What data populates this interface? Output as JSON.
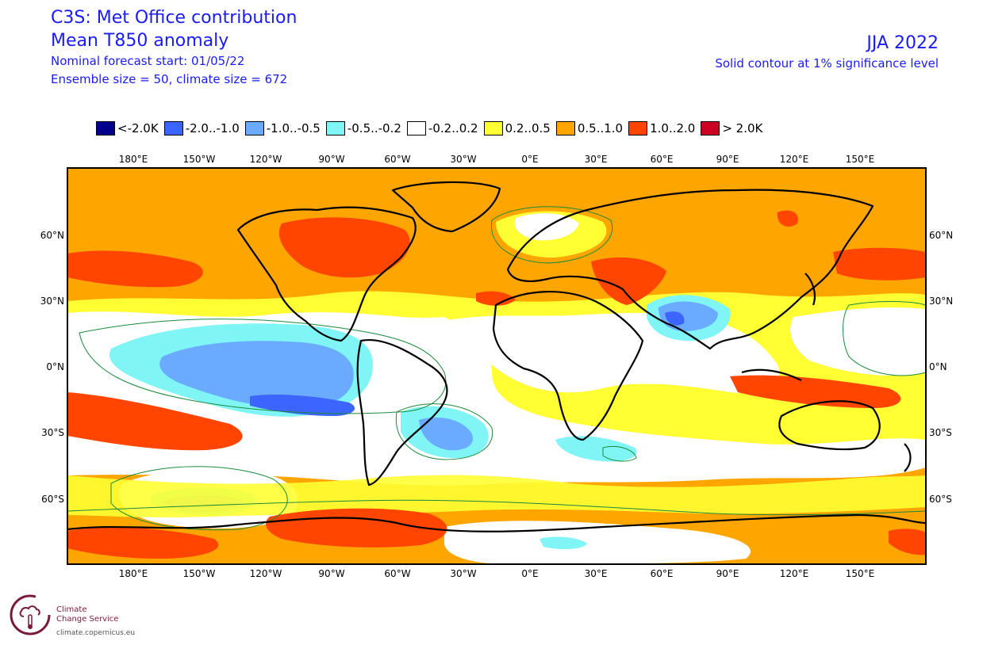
{
  "header": {
    "title_line1": "C3S: Met Office contribution",
    "title_line2": "Mean T850 anomaly",
    "forecast_start": "Nominal forecast start: 01/05/22",
    "ensemble": "Ensemble size = 50, climate size = 672",
    "season": "JJA 2022",
    "contour_note": "Solid contour at 1% significance level"
  },
  "legend": [
    {
      "label": "<-2.0K",
      "color": "#00008b"
    },
    {
      "label": "-2.0..-1.0",
      "color": "#3c64ff"
    },
    {
      "label": "-1.0..-0.5",
      "color": "#6aaaff"
    },
    {
      "label": "-0.5..-0.2",
      "color": "#7ff5f5"
    },
    {
      "label": "-0.2..0.2",
      "color": "#ffffff"
    },
    {
      "label": "0.2..0.5",
      "color": "#ffff33"
    },
    {
      "label": "0.5..1.0",
      "color": "#ffa500"
    },
    {
      "label": "1.0..2.0",
      "color": "#ff4500"
    },
    {
      "label": "> 2.0K",
      "color": "#cc0022"
    }
  ],
  "axes": {
    "lon_labels": [
      "180°E",
      "150°W",
      "120°W",
      "90°W",
      "60°W",
      "30°W",
      "0°E",
      "30°E",
      "60°E",
      "90°E",
      "120°E",
      "150°E"
    ],
    "lat_labels": [
      "60°N",
      "30°N",
      "0°N",
      "30°S",
      "60°S"
    ]
  },
  "footer": {
    "org_line1": "Climate",
    "org_line2": "Change Service",
    "url": "climate.copernicus.eu"
  }
}
